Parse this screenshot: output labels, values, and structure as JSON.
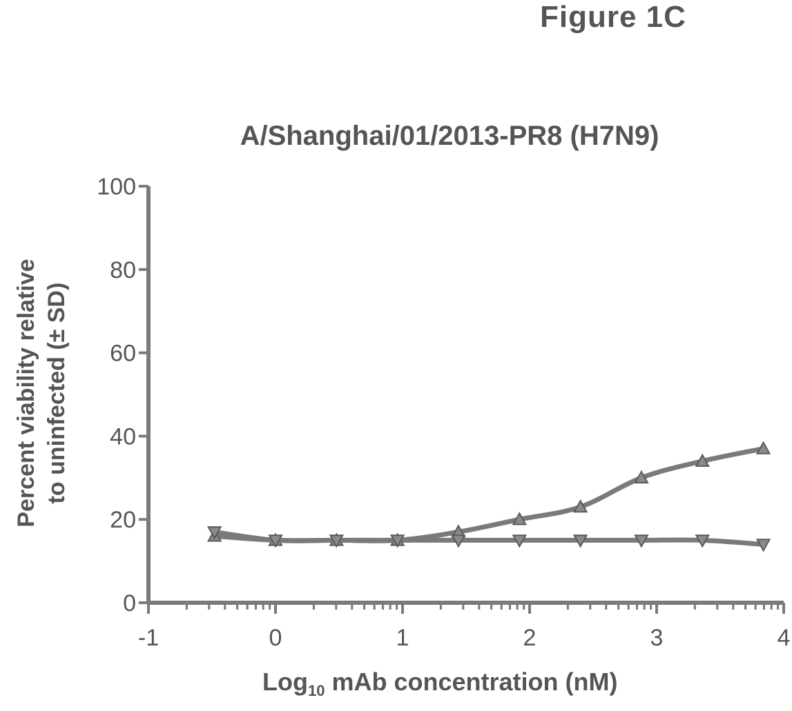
{
  "figure_label": "Figure 1C",
  "chart_data": {
    "type": "line",
    "title": "A/Shanghai/01/2013-PR8 (H7N9)",
    "ylabel_line1": "Percent viability relative",
    "ylabel_line2": "to uninfected (± SD)",
    "xlabel_main": "Log",
    "xlabel_sub": "10",
    "xlabel_rest": " mAb concentration (nM)",
    "xlim": [
      -1,
      4
    ],
    "ylim": [
      0,
      100
    ],
    "xticks": [
      "-1",
      "0",
      "1",
      "2",
      "3",
      "4"
    ],
    "yticks": [
      "0",
      "20",
      "40",
      "60",
      "80",
      "100"
    ],
    "series": [
      {
        "marker": "triangle-up",
        "x": [
          -0.48,
          0.0,
          0.48,
          0.96,
          1.44,
          1.92,
          2.4,
          2.88,
          3.36,
          3.84
        ],
        "y": [
          16,
          15,
          15,
          15,
          17,
          20,
          23,
          30,
          34,
          37
        ]
      },
      {
        "marker": "triangle-down",
        "x": [
          -0.48,
          0.0,
          0.48,
          0.96,
          1.44,
          1.92,
          2.4,
          2.88,
          3.36,
          3.84
        ],
        "y": [
          17,
          15,
          15,
          15,
          15,
          15,
          15,
          15,
          15,
          14
        ]
      }
    ],
    "color": "#7a7a7a",
    "grid": false
  }
}
